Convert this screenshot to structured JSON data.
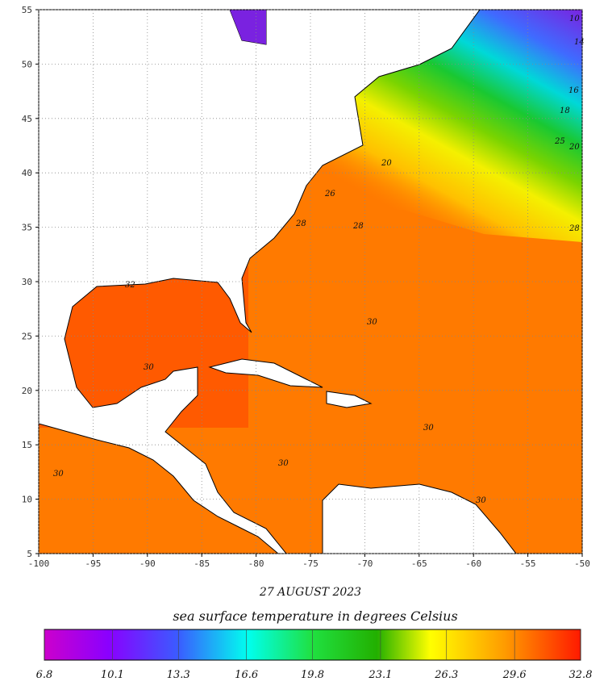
{
  "map": {
    "lon_ticks": [
      -100,
      -95,
      -90,
      -85,
      -80,
      -75,
      -70,
      -65,
      -60,
      -55,
      -50
    ],
    "lat_ticks": [
      5,
      10,
      15,
      20,
      25,
      30,
      35,
      40,
      45,
      50,
      55
    ],
    "date": "27 AUGUST 2023",
    "caption": "sea surface temperature in degrees Celsius",
    "colorbar_ticks": [
      6.8,
      10.1,
      13.3,
      16.6,
      19.8,
      23.1,
      26.3,
      29.6,
      32.8
    ],
    "contour_labels": [
      "32",
      "30",
      "30",
      "30",
      "30",
      "30",
      "30",
      "28",
      "28",
      "28",
      "26",
      "25",
      "20",
      "20",
      "18",
      "16",
      "14",
      "10"
    ]
  }
}
